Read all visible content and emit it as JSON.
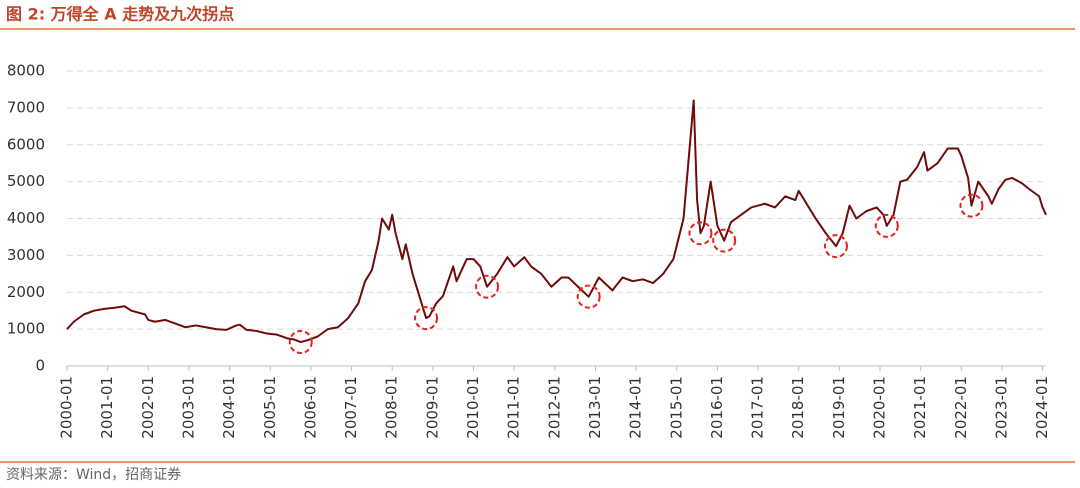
{
  "chart_data": {
    "type": "line",
    "title": "图 2:  万得全 A 走势及九次拐点",
    "source": "资料来源：Wind，招商证券",
    "x": [
      "2000-01",
      "2000-03",
      "2000-06",
      "2000-09",
      "2000-12",
      "2001-03",
      "2001-06",
      "2001-08",
      "2001-10",
      "2001-12",
      "2002-01",
      "2002-03",
      "2002-06",
      "2002-09",
      "2002-12",
      "2003-03",
      "2003-06",
      "2003-09",
      "2003-12",
      "2004-03",
      "2004-04",
      "2004-06",
      "2004-09",
      "2004-12",
      "2005-03",
      "2005-06",
      "2005-08",
      "2005-10",
      "2005-12",
      "2006-03",
      "2006-06",
      "2006-09",
      "2006-12",
      "2007-03",
      "2007-05",
      "2007-07",
      "2007-09",
      "2007-10",
      "2007-12",
      "2008-01",
      "2008-02",
      "2008-04",
      "2008-05",
      "2008-07",
      "2008-09",
      "2008-11",
      "2008-12",
      "2009-02",
      "2009-04",
      "2009-07",
      "2009-08",
      "2009-11",
      "2010-01",
      "2010-03",
      "2010-05",
      "2010-08",
      "2010-11",
      "2011-01",
      "2011-04",
      "2011-06",
      "2011-09",
      "2011-12",
      "2012-03",
      "2012-05",
      "2012-09",
      "2012-11",
      "2013-02",
      "2013-06",
      "2013-09",
      "2013-12",
      "2014-03",
      "2014-06",
      "2014-09",
      "2014-12",
      "2015-03",
      "2015-06",
      "2015-07",
      "2015-08",
      "2015-09",
      "2015-11",
      "2016-01",
      "2016-03",
      "2016-05",
      "2016-08",
      "2016-11",
      "2017-03",
      "2017-06",
      "2017-09",
      "2017-12",
      "2018-01",
      "2018-04",
      "2018-06",
      "2018-09",
      "2018-12",
      "2019-02",
      "2019-04",
      "2019-06",
      "2019-09",
      "2019-12",
      "2020-02",
      "2020-03",
      "2020-05",
      "2020-07",
      "2020-09",
      "2020-12",
      "2021-02",
      "2021-03",
      "2021-06",
      "2021-09",
      "2021-12",
      "2022-01",
      "2022-03",
      "2022-04",
      "2022-06",
      "2022-09",
      "2022-10",
      "2022-12",
      "2023-02",
      "2023-04",
      "2023-07",
      "2023-09",
      "2023-12",
      "2024-01",
      "2024-02"
    ],
    "series": [
      {
        "color": "#6e0b0b",
        "values": [
          1000,
          1200,
          1400,
          1500,
          1550,
          1580,
          1620,
          1500,
          1450,
          1400,
          1250,
          1200,
          1250,
          1150,
          1050,
          1100,
          1050,
          1000,
          980,
          1100,
          1120,
          980,
          950,
          880,
          850,
          750,
          720,
          650,
          700,
          800,
          1000,
          1050,
          1300,
          1700,
          2300,
          2600,
          3400,
          4000,
          3700,
          4100,
          3600,
          2900,
          3300,
          2500,
          1900,
          1300,
          1350,
          1700,
          1900,
          2700,
          2300,
          2900,
          2900,
          2700,
          2150,
          2500,
          2950,
          2700,
          2950,
          2700,
          2500,
          2150,
          2400,
          2400,
          2050,
          1880,
          2400,
          2050,
          2400,
          2300,
          2350,
          2250,
          2500,
          2900,
          4000,
          7200,
          4500,
          3600,
          3800,
          5000,
          3800,
          3400,
          3900,
          4100,
          4300,
          4400,
          4300,
          4600,
          4500,
          4750,
          4300,
          4000,
          3600,
          3250,
          3600,
          4350,
          4000,
          4200,
          4300,
          4100,
          3800,
          4100,
          5000,
          5050,
          5400,
          5800,
          5300,
          5500,
          5900,
          5900,
          5700,
          5100,
          4350,
          5000,
          4600,
          4400,
          4800,
          5050,
          5100,
          4950,
          4800,
          4600,
          4300,
          4100
        ]
      }
    ],
    "turning_points": {
      "x": [
        "2005-10",
        "2008-11",
        "2010-05",
        "2012-11",
        "2015-08",
        "2016-03",
        "2018-12",
        "2020-03",
        "2022-04"
      ],
      "values": [
        650,
        1300,
        2150,
        1880,
        3600,
        3400,
        3250,
        3800,
        4350
      ],
      "color": "#e8201a"
    },
    "xlim": [
      "2000-01",
      "2024-02"
    ],
    "xticks": [
      "2000-01",
      "2001-01",
      "2002-01",
      "2003-01",
      "2004-01",
      "2005-01",
      "2006-01",
      "2007-01",
      "2008-01",
      "2009-01",
      "2010-01",
      "2011-01",
      "2012-01",
      "2013-01",
      "2014-01",
      "2015-01",
      "2016-01",
      "2017-01",
      "2018-01",
      "2019-01",
      "2020-01",
      "2021-01",
      "2022-01",
      "2023-01",
      "2024-01"
    ],
    "ylim": [
      0,
      8000
    ],
    "yticks": [
      0,
      1000,
      2000,
      3000,
      4000,
      5000,
      6000,
      7000,
      8000
    ],
    "grid": true
  }
}
